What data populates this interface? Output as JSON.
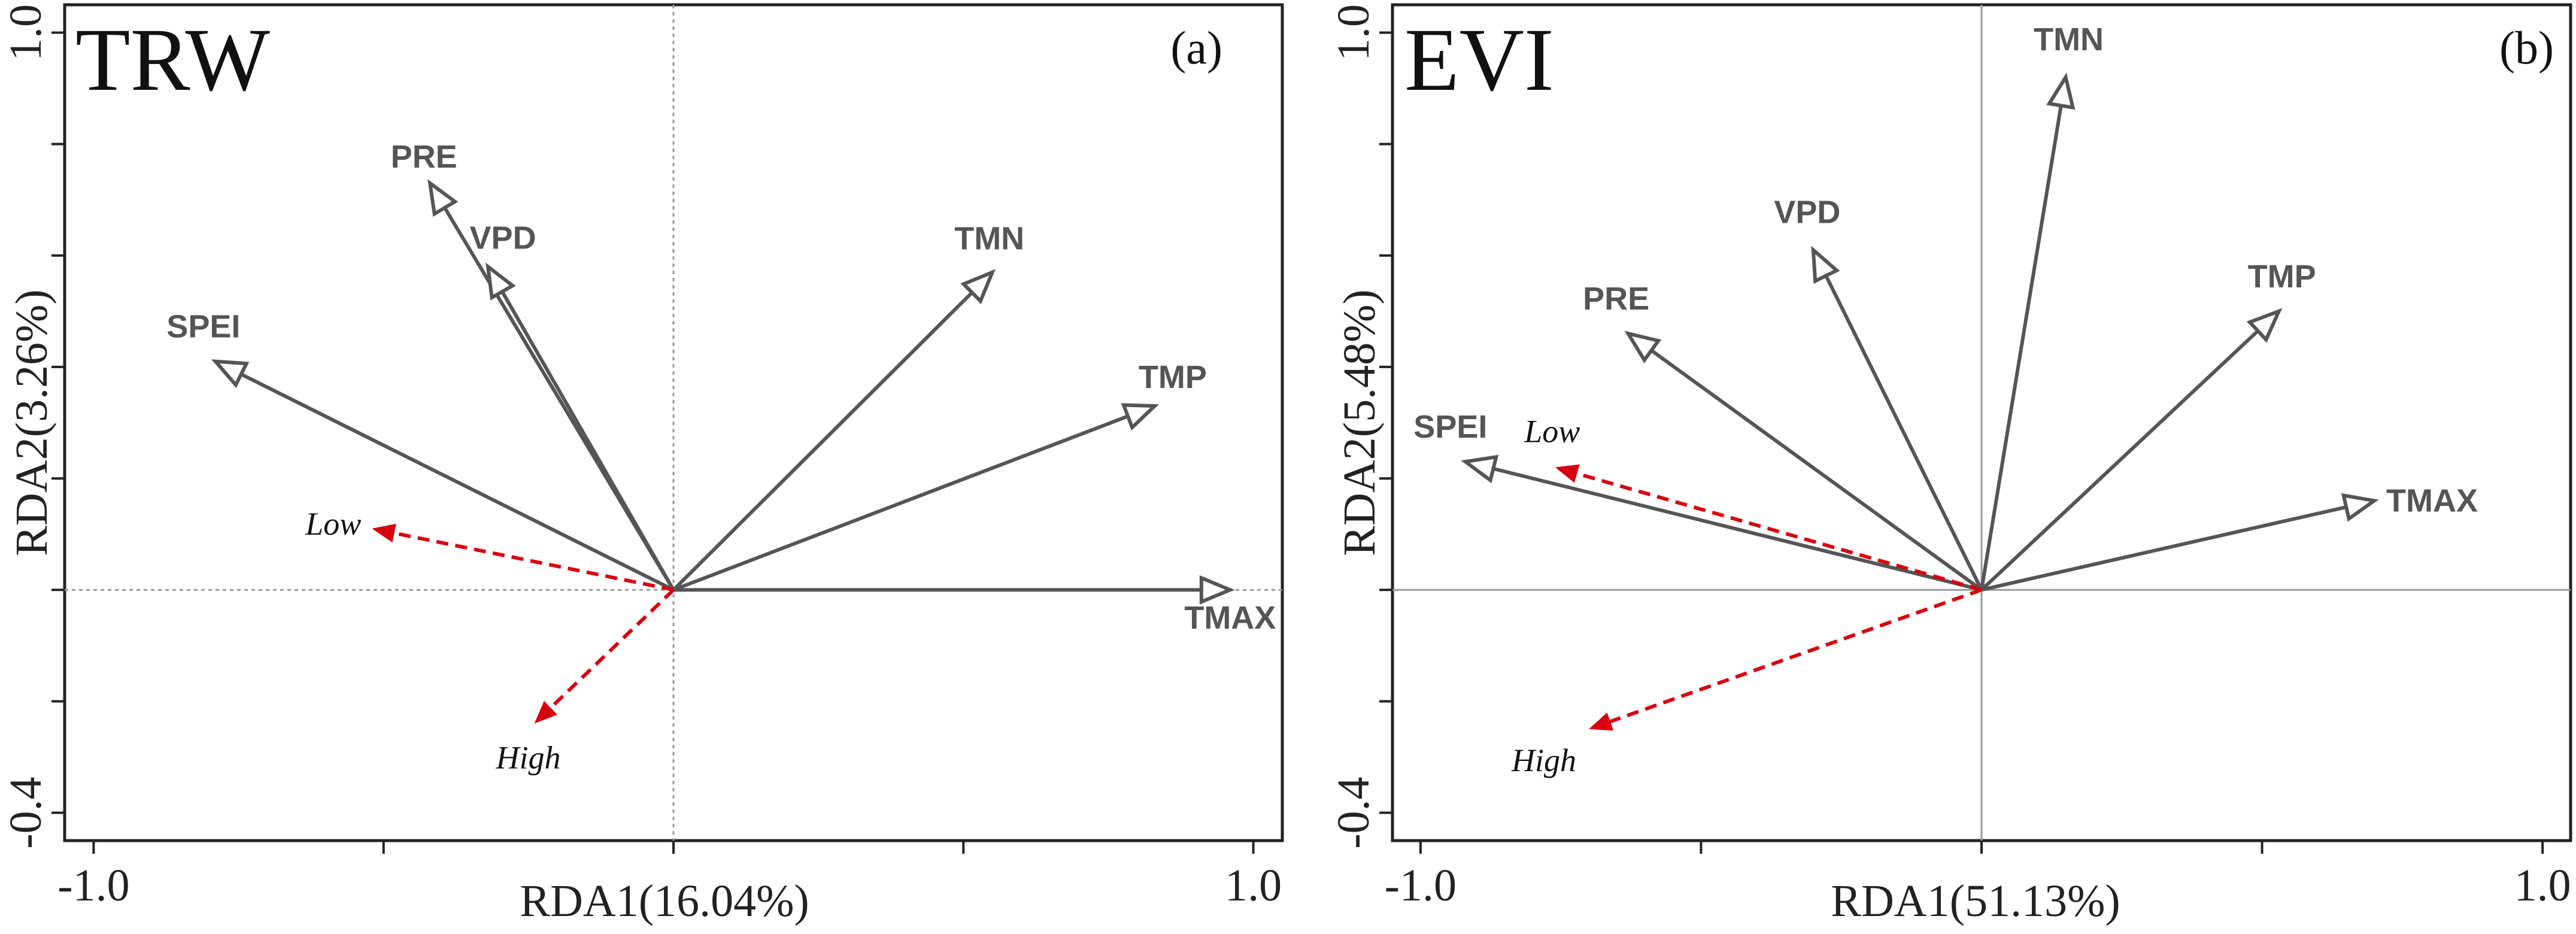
{
  "chart_data": [
    {
      "type": "biplot",
      "title": "TRW",
      "panel_label": "(a)",
      "xlabel": "RDA1(16.04%)",
      "ylabel": "RDA2(3.26%)",
      "xlim": [
        -1.05,
        1.05
      ],
      "ylim": [
        -0.45,
        1.05
      ],
      "x_tick_labels": [
        "-1.0",
        "1.0"
      ],
      "y_tick_labels": [
        "-0.4",
        "1.0"
      ],
      "vectors": [
        {
          "name": "PRE",
          "x": -0.42,
          "y": 0.73
        },
        {
          "name": "VPD",
          "x": -0.32,
          "y": 0.58
        },
        {
          "name": "SPEI",
          "x": -0.79,
          "y": 0.41
        },
        {
          "name": "TMN",
          "x": 0.55,
          "y": 0.57
        },
        {
          "name": "TMP",
          "x": 0.83,
          "y": 0.33
        },
        {
          "name": "TMAX",
          "x": 0.96,
          "y": 0.0
        }
      ],
      "groups": [
        {
          "name": "Low",
          "x": -0.52,
          "y": 0.11
        },
        {
          "name": "High",
          "x": -0.24,
          "y": -0.24
        }
      ]
    },
    {
      "type": "biplot",
      "title": "EVI",
      "panel_label": "(b)",
      "xlabel": "RDA1(51.13%)",
      "ylabel": "RDA2(5.48%)",
      "xlim": [
        -1.05,
        1.05
      ],
      "ylim": [
        -0.45,
        1.05
      ],
      "x_tick_labels": [
        "-1.0",
        "1.0"
      ],
      "y_tick_labels": [
        "-0.4",
        "1.0"
      ],
      "vectors": [
        {
          "name": "TMN",
          "x": 0.15,
          "y": 0.92
        },
        {
          "name": "VPD",
          "x": -0.3,
          "y": 0.61
        },
        {
          "name": "PRE",
          "x": -0.63,
          "y": 0.46
        },
        {
          "name": "TMP",
          "x": 0.53,
          "y": 0.5
        },
        {
          "name": "SPEI",
          "x": -0.92,
          "y": 0.23
        },
        {
          "name": "TMAX",
          "x": 0.7,
          "y": 0.16
        }
      ],
      "groups": [
        {
          "name": "Low",
          "x": -0.76,
          "y": 0.22
        },
        {
          "name": "High",
          "x": -0.7,
          "y": -0.25
        }
      ]
    }
  ]
}
